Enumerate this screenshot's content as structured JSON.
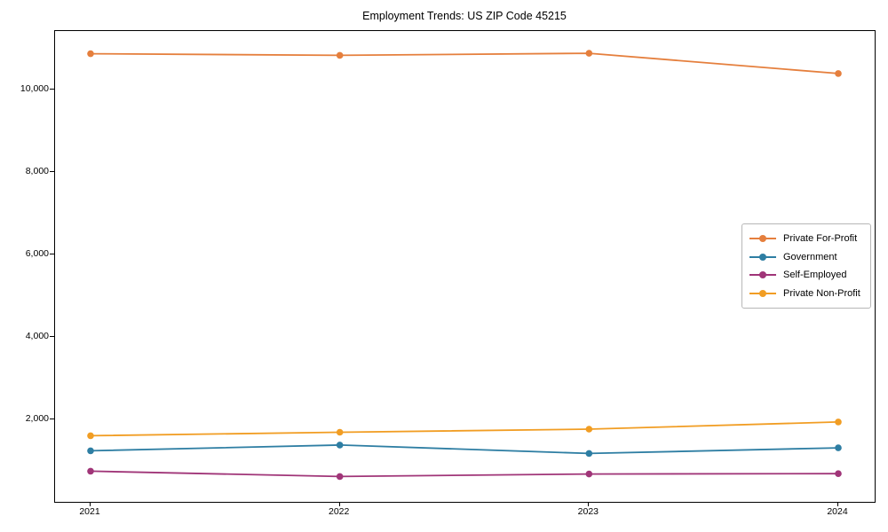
{
  "title": "Employment Trends: US ZIP Code 45215",
  "chart_data": {
    "type": "line",
    "x": [
      2021,
      2022,
      2023,
      2024
    ],
    "x_labels": [
      "2021",
      "2022",
      "2023",
      "2024"
    ],
    "series": [
      {
        "name": "Private For-Profit",
        "color": "#e57f3d",
        "values": [
          10880,
          10840,
          10890,
          10400
        ]
      },
      {
        "name": "Government",
        "color": "#2e7ea3",
        "values": [
          1240,
          1380,
          1175,
          1310
        ]
      },
      {
        "name": "Self-Employed",
        "color": "#a03578",
        "values": [
          745,
          615,
          675,
          685
        ]
      },
      {
        "name": "Private Non-Profit",
        "color": "#f19d23",
        "values": [
          1605,
          1690,
          1765,
          1940
        ]
      }
    ],
    "title": "Employment Trends: US ZIP Code 45215",
    "xlabel": "",
    "ylabel": "",
    "ylim": [
      0,
      11430
    ],
    "yticks": [
      2000,
      4000,
      6000,
      8000,
      10000
    ],
    "ytick_labels": [
      "2,000",
      "4,000",
      "6,000",
      "8,000",
      "10,000"
    ],
    "grid": false,
    "legend_position": "center-right",
    "marker": "circle"
  }
}
